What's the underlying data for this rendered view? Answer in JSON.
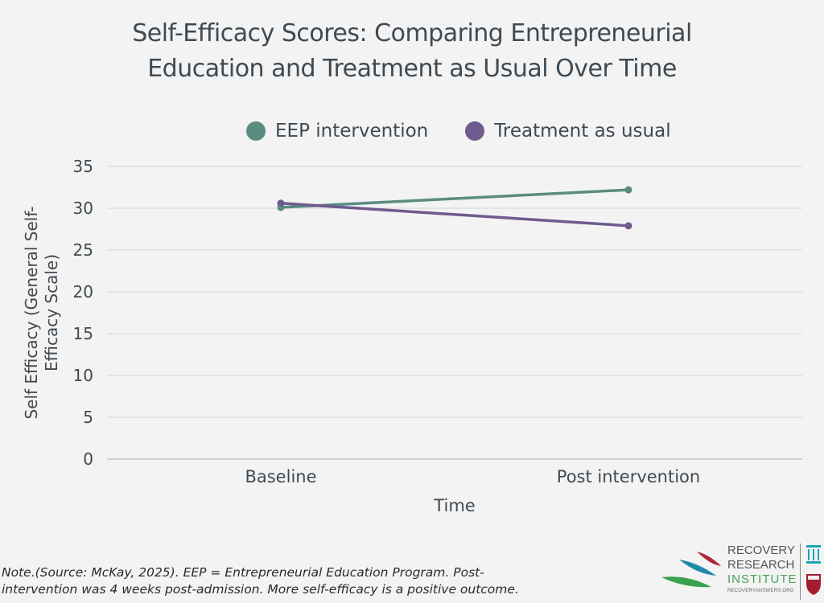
{
  "chart_data": {
    "type": "line",
    "title": "Self-Efficacy Scores: Comparing Entrepreneurial Education and Treatment as Usual Over Time",
    "title_lines": [
      "Self-Efficacy Scores: Comparing Entrepreneurial",
      "Education and Treatment as Usual Over Time"
    ],
    "xlabel": "Time",
    "ylabel": "Self Efficacy (General Self-Efficacy Scale)",
    "ylabel_lines": [
      "Self Efficacy (General Self-",
      "Efficacy Scale)"
    ],
    "categories": [
      "Baseline",
      "Post intervention"
    ],
    "ylim": [
      0,
      35
    ],
    "yticks": [
      0,
      5,
      10,
      15,
      20,
      25,
      30,
      35
    ],
    "grid": true,
    "legend_position": "top",
    "series": [
      {
        "name": "EEP intervention",
        "color": "#5a8c82",
        "values": [
          30.1,
          32.2
        ]
      },
      {
        "name": "Treatment as usual",
        "color": "#6f5b8e",
        "values": [
          30.6,
          27.9
        ]
      }
    ]
  },
  "note": {
    "line1": "Note.(Source: McKay, 2025).  EEP = Entrepreneurial Education Program. Post-",
    "line2": "intervention was 4 weeks post-admission. More self-efficacy is a positive outcome."
  },
  "logo": {
    "line1": "RECOVERY",
    "line2": "RESEARCH",
    "line3": "INSTITUTE",
    "url": "RECOVERYANSWERS.ORG"
  }
}
